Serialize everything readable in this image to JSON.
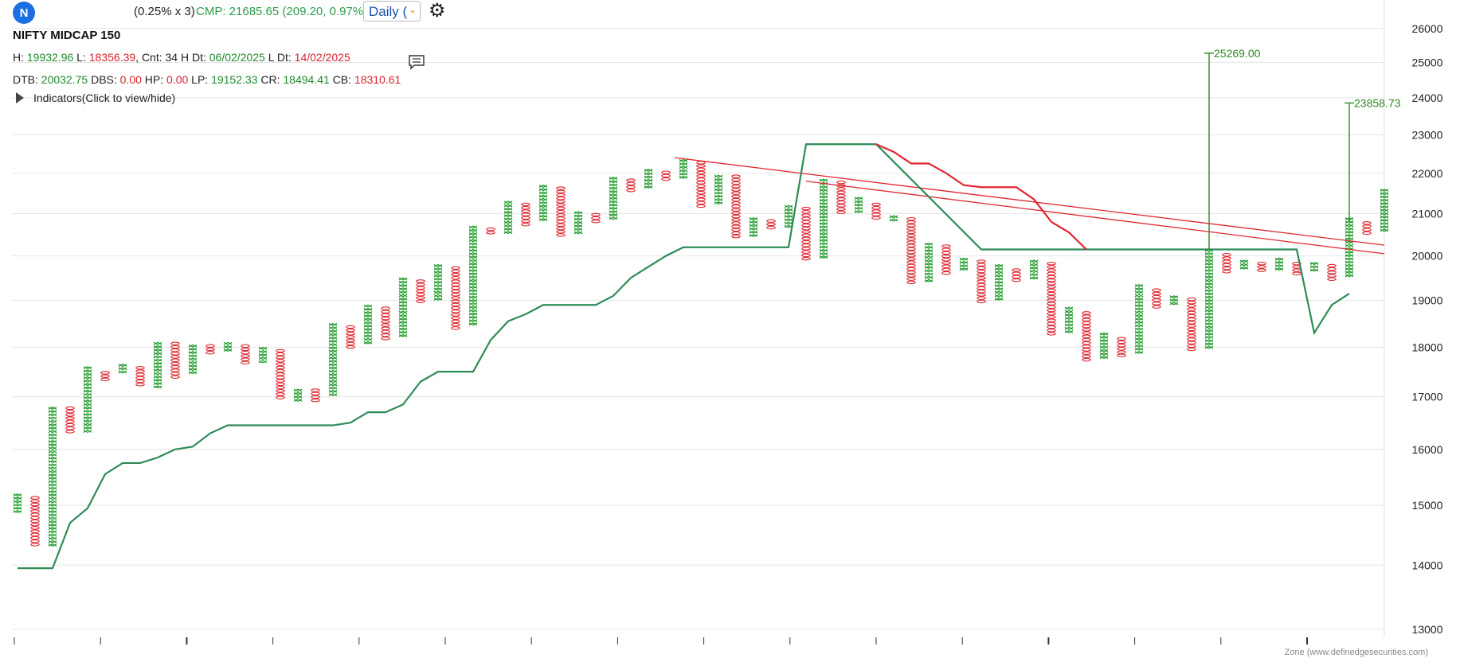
{
  "header": {
    "logo_letter": "N",
    "factor_text": "(0.25% x 3)",
    "cmp_text": "CMP: 21685.65 (209.20, 0.97%)",
    "timeframe": "Daily (",
    "gear_icon": "gear-icon"
  },
  "info": {
    "title": "NIFTY MIDCAP 150",
    "row1": {
      "h_label": "H: ",
      "h_value": "19932.96",
      "l_label": " L: ",
      "l_value": "18356.39",
      "cnt_text": ", Cnt: 34 H Dt: ",
      "h_dt": "06/02/2025",
      "l_dt_label": " L Dt: ",
      "l_dt": "14/02/2025"
    },
    "row2": {
      "dtb_label": "DTB: ",
      "dtb_value": "20032.75",
      "dbs_label": " DBS: ",
      "dbs_value": "0.00",
      "hp_label": " HP: ",
      "hp_value": "0.00",
      "lp_label": " LP: ",
      "lp_value": "19152.33",
      "cr_label": " CR: ",
      "cr_value": "18494.41",
      "cb_label": " CB: ",
      "cb_value": "18310.61"
    },
    "indicators_label": "Indicators(Click to view/hide)"
  },
  "watermark": "Zone (www.definedgesecurities.com)",
  "colors": {
    "x_column": "#1f9a2a",
    "o_column": "#e0262f",
    "stop_line_green": "#2e8b57",
    "stop_line_red": "#e0262f",
    "trendline": "#e0262f",
    "target_line": "#2a8a1f",
    "grid": "#e6e6e6"
  },
  "chart_data": {
    "type": "point-and-figure",
    "y_scale": "log",
    "ylim": [
      13000,
      26500
    ],
    "y_ticks": [
      13000,
      14000,
      15000,
      16000,
      17000,
      18000,
      19000,
      20000,
      21000,
      22000,
      23000,
      24000,
      25000,
      26000
    ],
    "x_label_count": 16,
    "grid": true,
    "columns": [
      {
        "type": "X",
        "low": 14900,
        "high": 15200
      },
      {
        "type": "O",
        "low": 14300,
        "high": 15150
      },
      {
        "type": "X",
        "low": 14300,
        "high": 16800
      },
      {
        "type": "O",
        "low": 16300,
        "high": 16800
      },
      {
        "type": "X",
        "low": 16300,
        "high": 17600
      },
      {
        "type": "O",
        "low": 17300,
        "high": 17500
      },
      {
        "type": "X",
        "low": 17450,
        "high": 17650
      },
      {
        "type": "O",
        "low": 17200,
        "high": 17600
      },
      {
        "type": "X",
        "low": 17200,
        "high": 18100
      },
      {
        "type": "O",
        "low": 17400,
        "high": 18100
      },
      {
        "type": "X",
        "low": 17500,
        "high": 18050
      },
      {
        "type": "O",
        "low": 17850,
        "high": 18050
      },
      {
        "type": "X",
        "low": 17900,
        "high": 18100
      },
      {
        "type": "O",
        "low": 17650,
        "high": 18050
      },
      {
        "type": "X",
        "low": 17700,
        "high": 18000
      },
      {
        "type": "O",
        "low": 16950,
        "high": 17950
      },
      {
        "type": "X",
        "low": 16950,
        "high": 17150
      },
      {
        "type": "O",
        "low": 16950,
        "high": 17150
      },
      {
        "type": "X",
        "low": 17000,
        "high": 18500
      },
      {
        "type": "O",
        "low": 18000,
        "high": 18450
      },
      {
        "type": "X",
        "low": 18100,
        "high": 18900
      },
      {
        "type": "O",
        "low": 18200,
        "high": 18850
      },
      {
        "type": "X",
        "low": 18200,
        "high": 19500
      },
      {
        "type": "O",
        "low": 19000,
        "high": 19450
      },
      {
        "type": "X",
        "low": 19050,
        "high": 19800
      },
      {
        "type": "O",
        "low": 18400,
        "high": 19750
      },
      {
        "type": "X",
        "low": 18450,
        "high": 20700
      },
      {
        "type": "O",
        "low": 20500,
        "high": 20650
      },
      {
        "type": "X",
        "low": 20550,
        "high": 21300
      },
      {
        "type": "O",
        "low": 20750,
        "high": 21250
      },
      {
        "type": "X",
        "low": 20800,
        "high": 21700
      },
      {
        "type": "O",
        "low": 20500,
        "high": 21650
      },
      {
        "type": "X",
        "low": 20550,
        "high": 21050
      },
      {
        "type": "O",
        "low": 20800,
        "high": 21000
      },
      {
        "type": "X",
        "low": 20850,
        "high": 21900
      },
      {
        "type": "O",
        "low": 21550,
        "high": 21850
      },
      {
        "type": "X",
        "low": 21600,
        "high": 22100
      },
      {
        "type": "O",
        "low": 21800,
        "high": 22050
      },
      {
        "type": "X",
        "low": 21850,
        "high": 22350
      },
      {
        "type": "O",
        "low": 21200,
        "high": 22300
      },
      {
        "type": "X",
        "low": 21250,
        "high": 21950
      },
      {
        "type": "O",
        "low": 20450,
        "high": 21950
      },
      {
        "type": "X",
        "low": 20500,
        "high": 20900
      },
      {
        "type": "O",
        "low": 20650,
        "high": 20850
      },
      {
        "type": "X",
        "low": 20700,
        "high": 21200
      },
      {
        "type": "O",
        "low": 19950,
        "high": 21150
      },
      {
        "type": "X",
        "low": 19950,
        "high": 21850
      },
      {
        "type": "O",
        "low": 21000,
        "high": 21800
      },
      {
        "type": "X",
        "low": 21050,
        "high": 21400
      },
      {
        "type": "O",
        "low": 20850,
        "high": 21250
      },
      {
        "type": "X",
        "low": 20850,
        "high": 20950
      },
      {
        "type": "O",
        "low": 19400,
        "high": 20900
      },
      {
        "type": "X",
        "low": 19450,
        "high": 20300
      },
      {
        "type": "O",
        "low": 19600,
        "high": 20250
      },
      {
        "type": "X",
        "low": 19650,
        "high": 19950
      },
      {
        "type": "O",
        "low": 18950,
        "high": 19900
      },
      {
        "type": "X",
        "low": 19000,
        "high": 19800
      },
      {
        "type": "O",
        "low": 19450,
        "high": 19700
      },
      {
        "type": "X",
        "low": 19500,
        "high": 19900
      },
      {
        "type": "O",
        "low": 18250,
        "high": 19850
      },
      {
        "type": "X",
        "low": 18300,
        "high": 18850
      },
      {
        "type": "O",
        "low": 17700,
        "high": 18750
      },
      {
        "type": "X",
        "low": 17750,
        "high": 18300
      },
      {
        "type": "O",
        "low": 17800,
        "high": 18200
      },
      {
        "type": "X",
        "low": 17850,
        "high": 19350
      },
      {
        "type": "O",
        "low": 18850,
        "high": 19250
      },
      {
        "type": "X",
        "low": 18900,
        "high": 19100
      },
      {
        "type": "O",
        "low": 17950,
        "high": 19050
      },
      {
        "type": "X",
        "low": 17950,
        "high": 20150
      },
      {
        "type": "O",
        "low": 19600,
        "high": 20050
      },
      {
        "type": "X",
        "low": 19700,
        "high": 19900
      },
      {
        "type": "O",
        "low": 19650,
        "high": 19850
      },
      {
        "type": "X",
        "low": 19700,
        "high": 19950
      },
      {
        "type": "O",
        "low": 19600,
        "high": 19850
      },
      {
        "type": "X",
        "low": 19650,
        "high": 19850
      },
      {
        "type": "O",
        "low": 19450,
        "high": 19800
      },
      {
        "type": "X",
        "low": 19500,
        "high": 20900
      },
      {
        "type": "O",
        "low": 20500,
        "high": 20800
      },
      {
        "type": "X",
        "low": 20600,
        "high": 21600
      }
    ],
    "stop_line_green": [
      [
        0,
        13950
      ],
      [
        2,
        13950
      ],
      [
        3,
        14700
      ],
      [
        4,
        14950
      ],
      [
        5,
        15550
      ],
      [
        6,
        15750
      ],
      [
        7,
        15750
      ],
      [
        8,
        15850
      ],
      [
        9,
        16000
      ],
      [
        10,
        16050
      ],
      [
        11,
        16300
      ],
      [
        12,
        16450
      ],
      [
        18,
        16450
      ],
      [
        19,
        16500
      ],
      [
        20,
        16700
      ],
      [
        21,
        16700
      ],
      [
        22,
        16850
      ],
      [
        23,
        17300
      ],
      [
        24,
        17500
      ],
      [
        26,
        17500
      ],
      [
        27,
        18150
      ],
      [
        28,
        18550
      ],
      [
        29,
        18700
      ],
      [
        30,
        18900
      ],
      [
        33,
        18900
      ],
      [
        34,
        19100
      ],
      [
        35,
        19500
      ],
      [
        36,
        19750
      ],
      [
        37,
        20000
      ],
      [
        38,
        20200
      ],
      [
        44,
        20200
      ],
      [
        45,
        22750
      ],
      [
        49,
        22750
      ],
      [
        55,
        20150
      ],
      [
        73,
        20150
      ],
      [
        74,
        18300
      ],
      [
        75,
        18900
      ],
      [
        76,
        19150
      ]
    ],
    "stop_line_red": [
      [
        49,
        22750
      ],
      [
        50,
        22550
      ],
      [
        51,
        22250
      ],
      [
        52,
        22250
      ],
      [
        53,
        22000
      ],
      [
        54,
        21700
      ],
      [
        55,
        21650
      ],
      [
        57,
        21650
      ],
      [
        58,
        21350
      ],
      [
        59,
        20800
      ],
      [
        60,
        20550
      ],
      [
        61,
        20150
      ]
    ],
    "trendlines": [
      {
        "from": [
          37.5,
          22400
        ],
        "to": [
          78,
          20250
        ]
      },
      {
        "from": [
          45,
          21800
        ],
        "to": [
          78,
          20050
        ]
      }
    ],
    "targets": [
      {
        "col": 68,
        "from": 20150,
        "to": 25269,
        "label": "25269.00"
      },
      {
        "col": 76,
        "from": 20800,
        "to": 23858.73,
        "label": "23858.73"
      }
    ]
  }
}
